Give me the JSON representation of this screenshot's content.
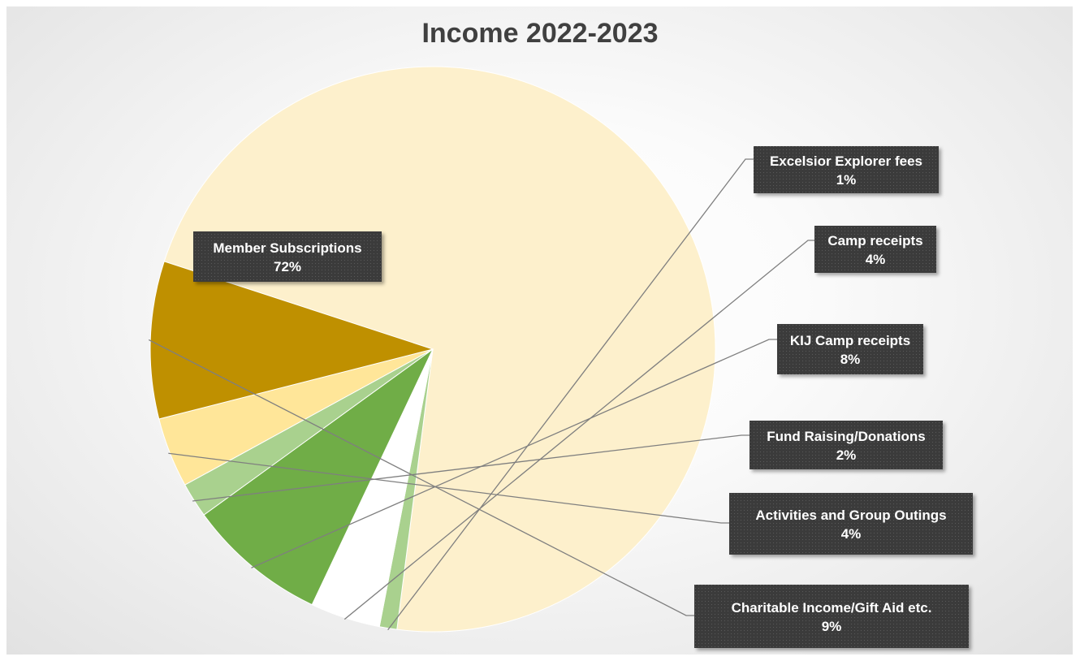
{
  "chart_data": {
    "type": "pie",
    "title": "Income 2022-2023",
    "categories": [
      "Member Subscriptions",
      "Excelsior Explorer fees",
      "Camp receipts",
      "KIJ Camp receipts",
      "Fund Raising/Donations",
      "Activities and Group Outings",
      "Charitable Income/Gift Aid etc."
    ],
    "values": [
      72,
      1,
      4,
      8,
      2,
      4,
      9
    ],
    "labels": [
      "72%",
      "1%",
      "4%",
      "8%",
      "2%",
      "4%",
      "9%"
    ],
    "colors": [
      "#fdf0cc",
      "#a9d18e",
      "#ffffff",
      "#70ad47",
      "#a9d18e",
      "#ffe699",
      "#bf9000"
    ],
    "label_color": "#ffffff",
    "label_background": "#3b3b3b",
    "legend": "none"
  }
}
